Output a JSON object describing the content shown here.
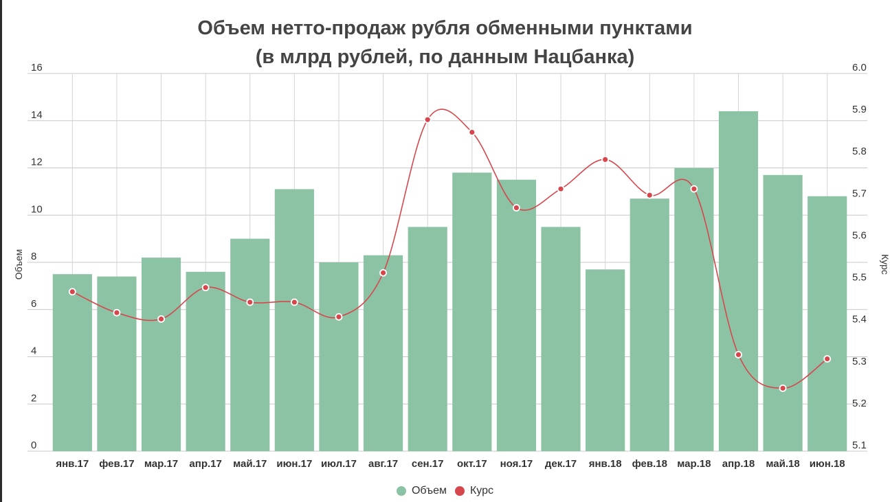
{
  "chart_data": {
    "type": "bar",
    "title_line1": "Объем нетто-продаж рубля обменными пунктами",
    "title_line2": "(в млрд рублей, по данным Нацбанка)",
    "categories": [
      "янв.17",
      "фев.17",
      "мар.17",
      "апр.17",
      "май.17",
      "июн.17",
      "июл.17",
      "авг.17",
      "сен.17",
      "окт.17",
      "ноя.17",
      "дек.17",
      "янв.18",
      "фев.18",
      "мар.18",
      "апр.18",
      "май.18",
      "июн.18"
    ],
    "series": [
      {
        "name": "Объем",
        "type": "bar",
        "axis": "left",
        "color": "#8cc3a5",
        "values": [
          7.5,
          7.4,
          8.2,
          7.6,
          9.0,
          11.1,
          8.0,
          8.3,
          9.5,
          11.8,
          11.5,
          9.5,
          7.7,
          10.7,
          12.0,
          14.4,
          11.7,
          10.8
        ]
      },
      {
        "name": "Курс",
        "type": "line",
        "axis": "right",
        "color": "#d5474d",
        "values": [
          5.48,
          5.43,
          5.415,
          5.49,
          5.455,
          5.455,
          5.42,
          5.525,
          5.89,
          5.86,
          5.68,
          5.725,
          5.795,
          5.71,
          5.725,
          5.33,
          5.25,
          5.32
        ]
      }
    ],
    "ylabel": "Объем",
    "ylabel_right": "Курс",
    "ylim": [
      0,
      16
    ],
    "ylim_right": [
      5.1,
      6.0
    ],
    "yticks": [
      "0",
      "2",
      "4",
      "6",
      "8",
      "10",
      "12",
      "14",
      "16"
    ],
    "yticks_right": [
      "5.1",
      "5.2",
      "5.3",
      "5.4",
      "5.5",
      "5.6",
      "5.7",
      "5.8",
      "5.9",
      "6.0"
    ],
    "grid": true,
    "legend_position": "bottom-center"
  }
}
